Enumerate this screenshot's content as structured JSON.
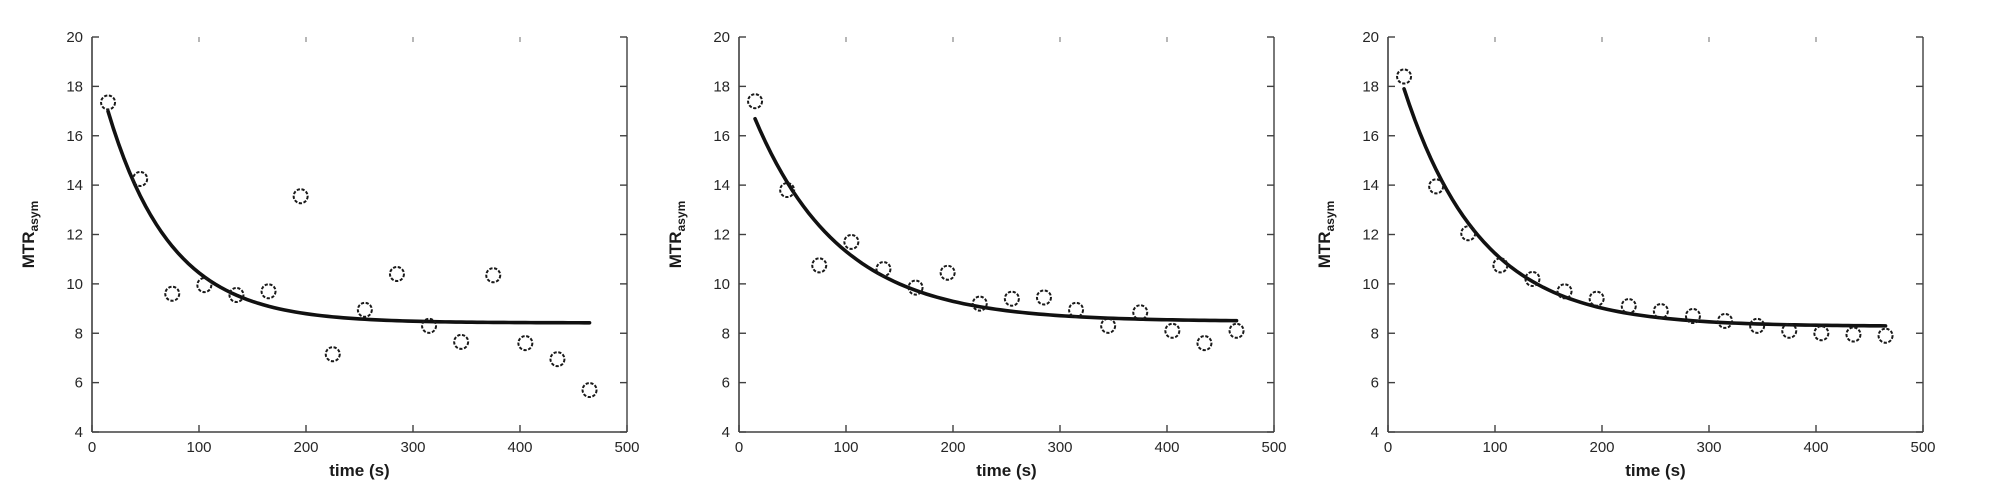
{
  "figure": {
    "background": "#ffffff",
    "axis_color": "#404040",
    "tick_label_color": "#262626",
    "axis_label_color": "#1a1a1a",
    "curve_color": "#111111",
    "marker_color": "#1a1a1a",
    "top_tick_color": "#909090"
  },
  "chart_data": [
    {
      "type": "scatter",
      "title": "",
      "xlabel": "time (s)",
      "ylabel": "MTR",
      "ylabel_subscript": "asym",
      "xlim": [
        0,
        500
      ],
      "ylim": [
        4,
        20
      ],
      "xticks": [
        0,
        100,
        200,
        300,
        400,
        500
      ],
      "yticks": [
        4,
        6,
        8,
        10,
        12,
        14,
        16,
        18,
        20
      ],
      "top_ticks": [
        100,
        200,
        300,
        400
      ],
      "grid": false,
      "legend": "none",
      "marker": "open-circle",
      "x": [
        15,
        45,
        75,
        105,
        135,
        165,
        195,
        225,
        255,
        285,
        315,
        345,
        375,
        405,
        435,
        465
      ],
      "y": [
        17.35,
        14.25,
        9.6,
        9.95,
        9.55,
        9.7,
        13.55,
        7.15,
        8.95,
        10.4,
        8.3,
        7.65,
        10.35,
        7.6,
        6.95,
        5.7
      ],
      "fit": {
        "type": "exponential-decay",
        "formula": "y = C + A*exp(-x/tau)",
        "C": 8.42,
        "A": 11.05,
        "tau": 59,
        "x_start": 15,
        "x_end": 465
      }
    },
    {
      "type": "scatter",
      "title": "",
      "xlabel": "time (s)",
      "ylabel": "MTR",
      "ylabel_subscript": "asym",
      "xlim": [
        0,
        500
      ],
      "ylim": [
        4,
        20
      ],
      "xticks": [
        0,
        100,
        200,
        300,
        400,
        500
      ],
      "yticks": [
        4,
        6,
        8,
        10,
        12,
        14,
        16,
        18,
        20
      ],
      "top_ticks": [
        100,
        200,
        300,
        400
      ],
      "grid": false,
      "legend": "none",
      "marker": "open-circle",
      "x": [
        15,
        45,
        75,
        105,
        135,
        165,
        195,
        225,
        255,
        285,
        315,
        345,
        375,
        405,
        435,
        465
      ],
      "y": [
        17.4,
        13.8,
        10.75,
        11.7,
        10.6,
        9.85,
        10.45,
        9.2,
        9.4,
        9.45,
        8.95,
        8.3,
        8.85,
        8.1,
        7.6,
        8.1
      ],
      "fit": {
        "type": "exponential-decay",
        "formula": "y = C + A*exp(-x/tau)",
        "C": 8.48,
        "A": 9.9,
        "tau": 80,
        "x_start": 15,
        "x_end": 465
      }
    },
    {
      "type": "scatter",
      "title": "",
      "xlabel": "time (s)",
      "ylabel": "MTR",
      "ylabel_subscript": "asym",
      "xlim": [
        0,
        500
      ],
      "ylim": [
        4,
        20
      ],
      "xticks": [
        0,
        100,
        200,
        300,
        400,
        500
      ],
      "yticks": [
        4,
        6,
        8,
        10,
        12,
        14,
        16,
        18,
        20
      ],
      "top_ticks": [
        100,
        200,
        300,
        400
      ],
      "grid": false,
      "legend": "none",
      "marker": "open-circle",
      "x": [
        15,
        45,
        75,
        105,
        135,
        165,
        195,
        225,
        255,
        285,
        315,
        345,
        375,
        405,
        435,
        465
      ],
      "y": [
        18.4,
        13.95,
        12.05,
        10.75,
        10.2,
        9.7,
        9.4,
        9.1,
        8.9,
        8.7,
        8.5,
        8.3,
        8.1,
        8.0,
        7.95,
        7.9
      ],
      "fit": {
        "type": "exponential-decay",
        "formula": "y = C + A*exp(-x/tau)",
        "C": 8.28,
        "A": 11.85,
        "tau": 72,
        "x_start": 15,
        "x_end": 465
      }
    }
  ]
}
